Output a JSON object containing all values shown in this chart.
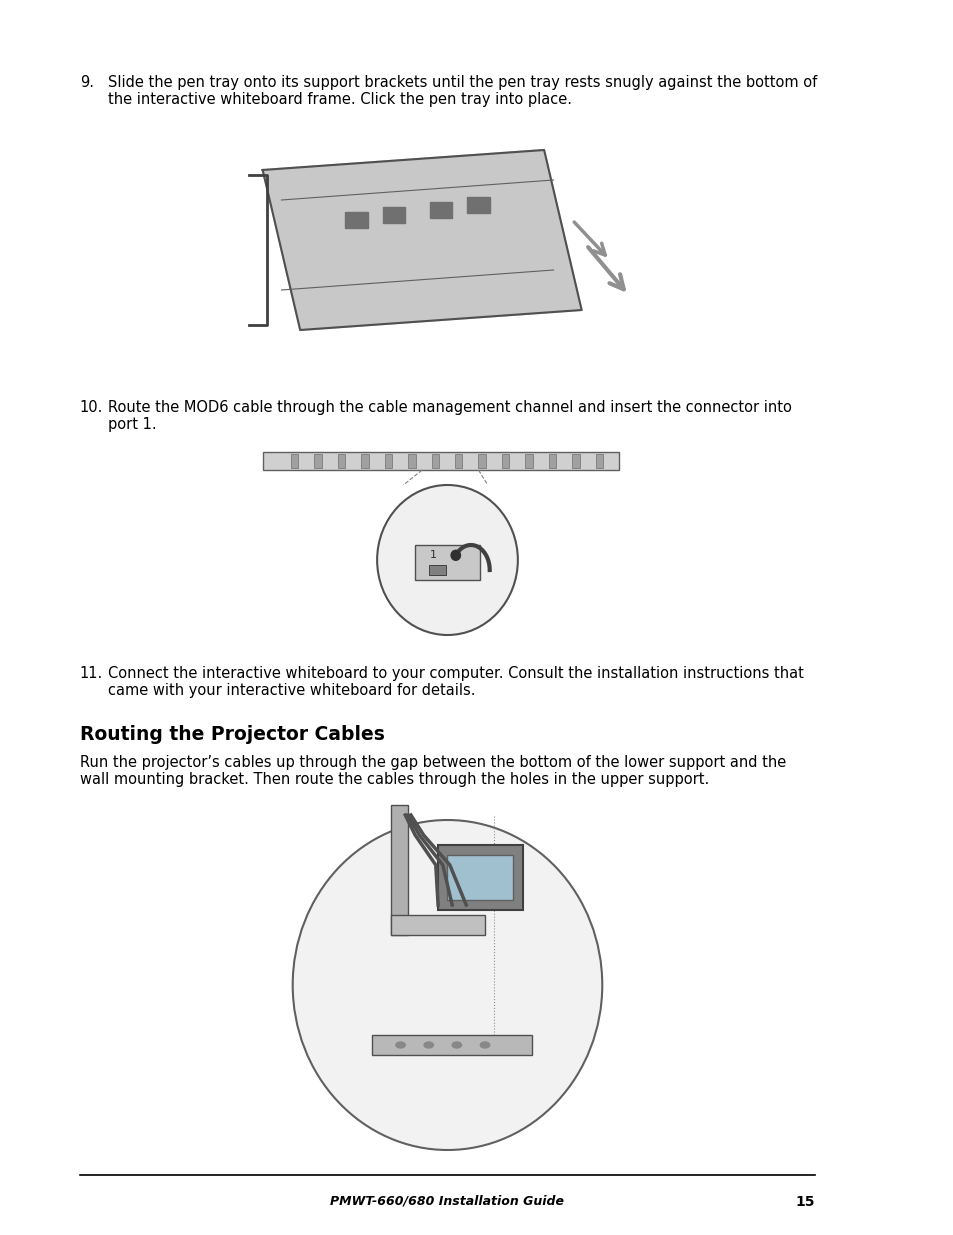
{
  "bg_color": "#ffffff",
  "text_color": "#000000",
  "footer_text": "PMWT-660/680 Installation Guide",
  "footer_page": "15",
  "section_title": "Routing the Projector Cables",
  "font_size_body": 10.5,
  "font_size_title": 13.5,
  "line_color": "#000000"
}
